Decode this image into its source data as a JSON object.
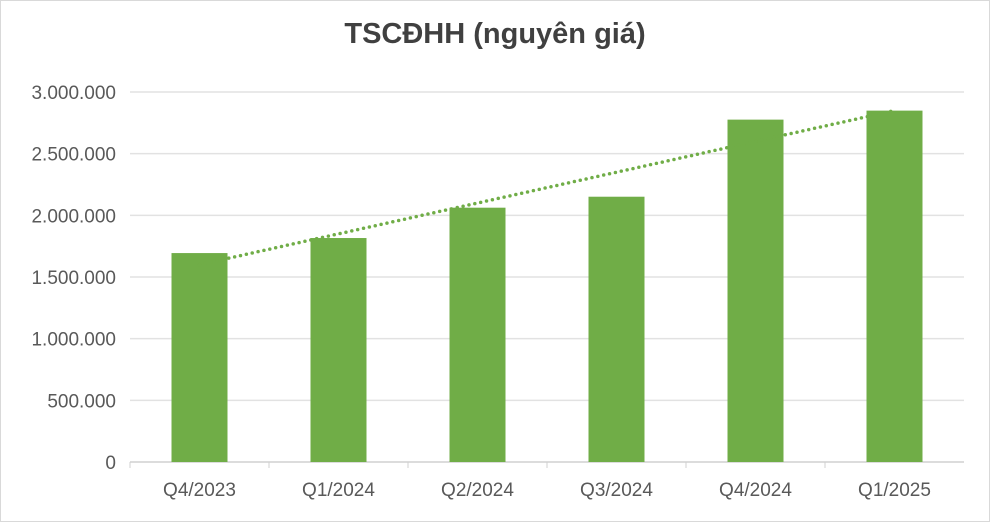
{
  "chart_data": {
    "type": "bar",
    "title": "TSCĐHH (nguyên giá)",
    "categories": [
      "Q4/2023",
      "Q1/2024",
      "Q2/2024",
      "Q3/2024",
      "Q4/2024",
      "Q1/2025"
    ],
    "values": [
      1694000,
      1816000,
      2062000,
      2151000,
      2776000,
      2849000
    ],
    "ylim": [
      0,
      3000000
    ],
    "yticks": [
      0,
      500000,
      1000000,
      1500000,
      2000000,
      2500000,
      3000000
    ],
    "ytick_labels": [
      "0",
      "500.000",
      "1.000.000",
      "1.500.000",
      "2.000.000",
      "2.500.000",
      "3.000.000"
    ],
    "grid": true,
    "trendline": "linear, dotted",
    "bar_color": "#70ad47",
    "legend": "none"
  }
}
